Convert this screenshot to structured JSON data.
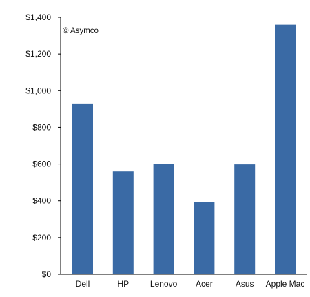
{
  "chart_data": {
    "type": "bar",
    "title": "",
    "xlabel": "",
    "ylabel": "",
    "categories": [
      "Dell",
      "HP",
      "Lenovo",
      "Acer",
      "Asus",
      "Apple Mac"
    ],
    "values": [
      930,
      560,
      600,
      393,
      598,
      1360
    ],
    "ylim": [
      0,
      1400
    ],
    "yticks": [
      0,
      200,
      400,
      600,
      800,
      1000,
      1200,
      1400
    ],
    "ytick_labels": [
      "$0",
      "$200",
      "$400",
      "$600",
      "$800",
      "$1,000",
      "$1,200",
      "$1,400"
    ],
    "grid": false,
    "legend": "none",
    "bar_color": "#3a6aa5",
    "annotation": "© Asymco"
  }
}
